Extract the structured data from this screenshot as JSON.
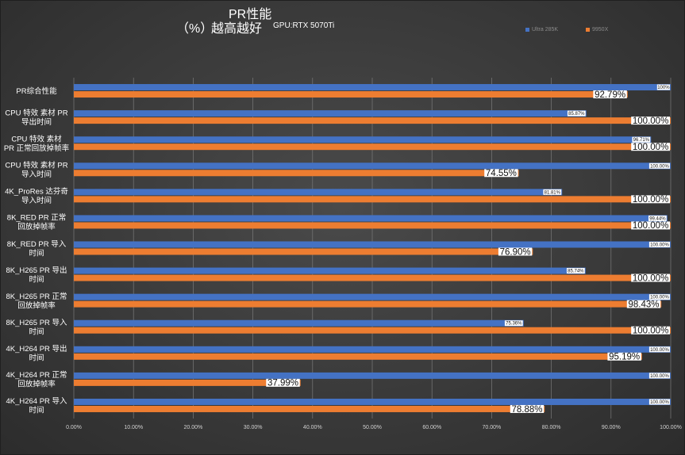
{
  "header": {
    "title": "PR性能",
    "subtitle_unit": "（%）",
    "subtitle_note": "越高越好",
    "gpu_note": "GPU:RTX 5070Ti"
  },
  "colors": {
    "series_a": "#4472c4",
    "series_b": "#ed7d31",
    "grid": "#7a7a7a",
    "axis_label": "#d0d0d0"
  },
  "chart_data": {
    "type": "bar",
    "orientation": "horizontal",
    "title": "PR性能",
    "categories": [
      "PR综合性能",
      "CPU 特效 素材 PR 导出时间",
      "CPU 特效 素材 PR 正常回放掉帧率",
      "CPU 特效 素材 PR 导入时间",
      "4K_ProRes 达芬奇 导入时间",
      "8K_RED PR 正常 回放掉帧率",
      "8K_RED PR 导入 时间",
      "8K_H265 PR 导出 时间",
      "8K_H265 PR 正常 回放掉帧率",
      "8K_H265 PR 导入 时间",
      "4K_H264 PR 导出 时间",
      "4K_H264 PR 正常 回放掉帧率",
      "4K_H264 PR 导入 时间"
    ],
    "category_lines": [
      [
        "PR综合性能"
      ],
      [
        "CPU 特效 素材 PR",
        "导出时间"
      ],
      [
        "CPU 特效 素材",
        "PR 正常回放掉帧率"
      ],
      [
        "CPU 特效 素材 PR",
        "导入时间"
      ],
      [
        "4K_ProRes 达芬奇",
        "导入时间"
      ],
      [
        "8K_RED PR 正常",
        "回放掉帧率"
      ],
      [
        "8K_RED PR 导入",
        "时间"
      ],
      [
        "8K_H265 PR 导出",
        "时间"
      ],
      [
        "8K_H265 PR 正常",
        "回放掉帧率"
      ],
      [
        "8K_H265 PR 导入",
        "时间"
      ],
      [
        "4K_H264 PR 导出",
        "时间"
      ],
      [
        "4K_H264 PR 正常",
        "回放掉帧率"
      ],
      [
        "4K_H264 PR 导入",
        "时间"
      ]
    ],
    "series": [
      {
        "name": "Ultra 285K",
        "color": "#4472c4",
        "values": [
          100,
          85.87,
          96.71,
          100,
          81.81,
          99.44,
          100,
          85.74,
          100,
          75.36,
          100,
          100,
          100
        ],
        "labels": [
          "100%",
          "85.87%",
          "96.71%",
          "100.00%",
          "81.81%",
          "99.44%",
          "100.00%",
          "85.74%",
          "100.00%",
          "75.36%",
          "100.00%",
          "100.00%",
          "100.00%"
        ]
      },
      {
        "name": "9950X",
        "color": "#ed7d31",
        "values": [
          92.79,
          100,
          100,
          74.55,
          100,
          100,
          76.9,
          100,
          98.43,
          100,
          95.19,
          37.99,
          78.88
        ],
        "labels": [
          "92.79%",
          "100.00%",
          "100.00%",
          "74.55%",
          "100.00%",
          "100.00%",
          "76.90%",
          "100.00%",
          "98.43%",
          "100.00%",
          "95.19%",
          "37.99%",
          "78.88%"
        ]
      }
    ],
    "xlim": [
      0,
      100
    ],
    "xticks": [
      "0.00%",
      "10.00%",
      "20.00%",
      "30.00%",
      "40.00%",
      "50.00%",
      "60.00%",
      "70.00%",
      "80.00%",
      "90.00%",
      "100.00%"
    ],
    "grid": true,
    "legend": "top-right"
  }
}
